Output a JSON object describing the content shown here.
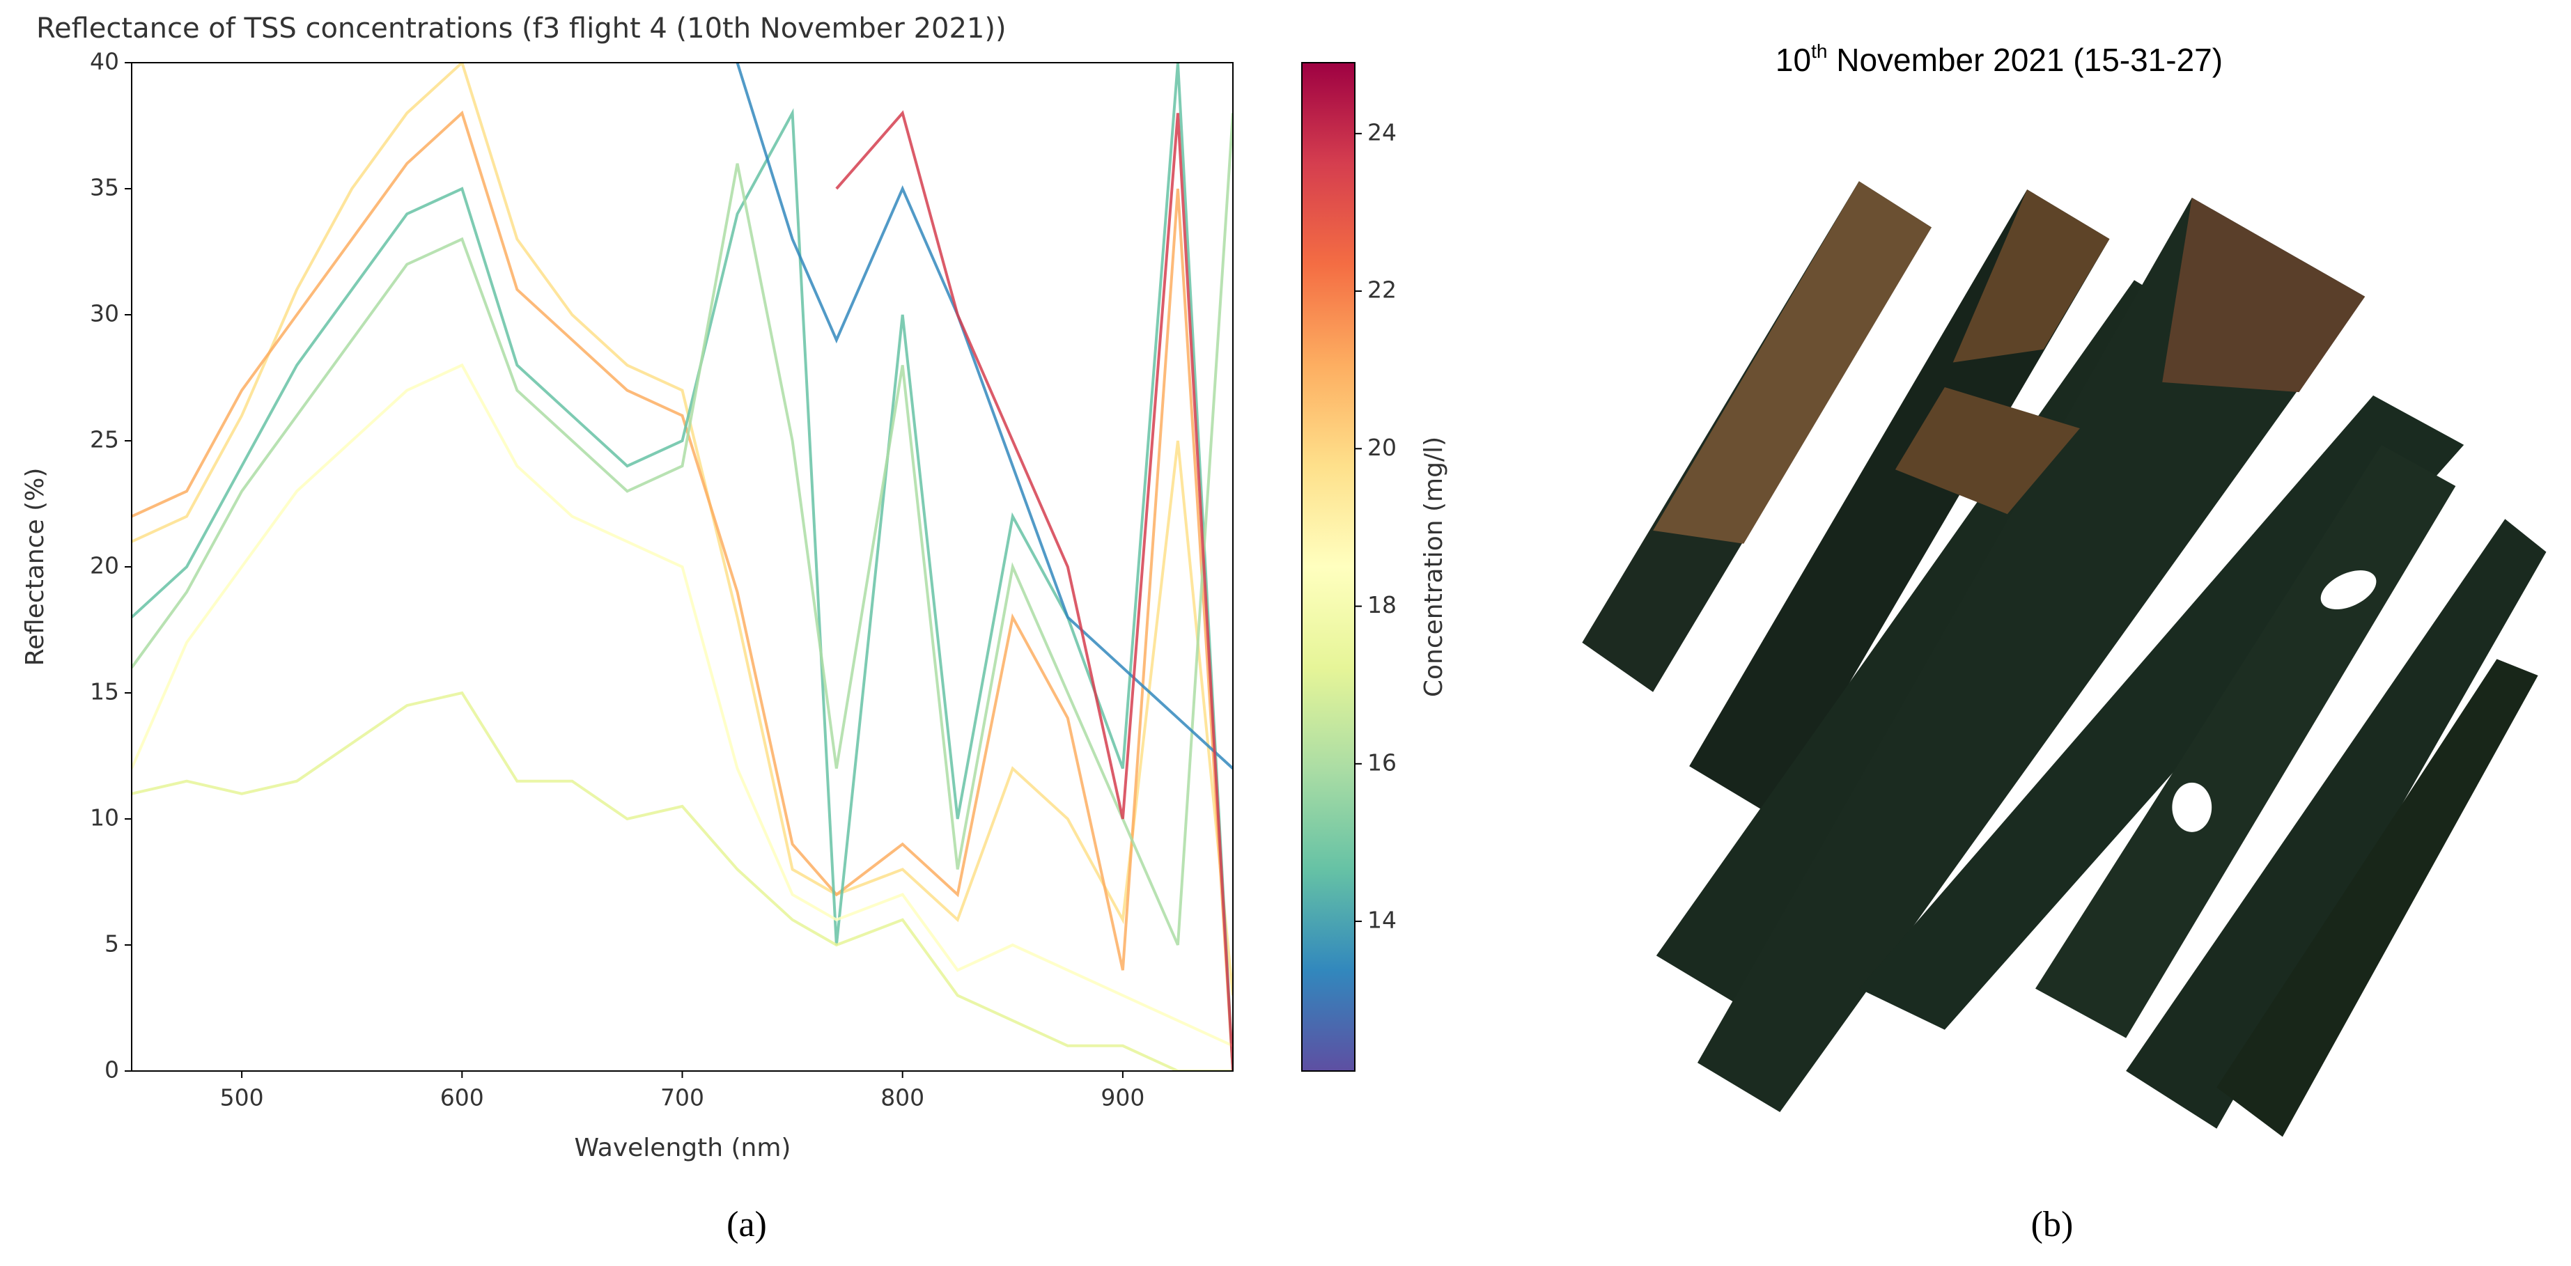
{
  "chart_data": {
    "type": "line",
    "title": "Reflectance of TSS concentrations (f3 flight 4 (10th November 2021))",
    "x_label": "Wavelength (nm)",
    "y_label": "Reflectance (%)",
    "colorbar_label": "Concentration (mg/l)",
    "x": [
      450,
      475,
      500,
      525,
      550,
      575,
      600,
      625,
      650,
      675,
      700,
      725,
      750,
      770,
      800,
      825,
      850,
      875,
      900,
      925,
      950
    ],
    "series": [
      {
        "color": "#fee08b",
        "values": [
          21,
          22,
          26,
          31,
          35,
          38,
          40,
          33,
          30,
          28,
          27,
          18,
          8,
          7,
          8,
          6,
          12,
          10,
          6,
          25,
          3
        ]
      },
      {
        "color": "#fdae61",
        "values": [
          22,
          23,
          27,
          30,
          33,
          36,
          38,
          31,
          29,
          27,
          26,
          19,
          9,
          7,
          9,
          7,
          18,
          14,
          4,
          35,
          0
        ]
      },
      {
        "color": "#66c2a5",
        "values": [
          18,
          20,
          24,
          28,
          31,
          34,
          35,
          28,
          26,
          24,
          25,
          34,
          38,
          5,
          30,
          10,
          22,
          18,
          12,
          40,
          0
        ]
      },
      {
        "color": "#abdda4",
        "values": [
          16,
          19,
          23,
          26,
          29,
          32,
          33,
          27,
          25,
          23,
          24,
          36,
          25,
          12,
          28,
          8,
          20,
          15,
          10,
          5,
          38
        ]
      },
      {
        "color": "#ffffbf",
        "values": [
          12,
          17,
          20,
          23,
          25,
          27,
          28,
          24,
          22,
          21,
          20,
          12,
          7,
          6,
          7,
          4,
          5,
          4,
          3,
          2,
          1
        ]
      },
      {
        "color": "#e6f598",
        "values": [
          11,
          11.5,
          11,
          11.5,
          13,
          14.5,
          15,
          11.5,
          11.5,
          10,
          10.5,
          8,
          6,
          5,
          6,
          3,
          2,
          1,
          1,
          0,
          0
        ]
      },
      {
        "color": "#3288bd",
        "values": [
          null,
          null,
          null,
          null,
          null,
          null,
          null,
          null,
          null,
          null,
          null,
          40,
          33,
          29,
          35,
          30,
          24,
          18,
          16,
          14,
          12
        ]
      },
      {
        "color": "#d53e4f",
        "values": [
          null,
          null,
          null,
          null,
          null,
          null,
          null,
          null,
          null,
          null,
          null,
          null,
          null,
          35,
          38,
          30,
          25,
          20,
          10,
          38,
          0
        ]
      }
    ],
    "xlim": [
      450,
      950
    ],
    "ylim": [
      0,
      40
    ],
    "xticks": [
      500,
      600,
      700,
      800,
      900
    ],
    "yticks": [
      0,
      5,
      10,
      15,
      20,
      25,
      30,
      35,
      40
    ],
    "clim": [
      12.1,
      24.9
    ],
    "cticks": [
      14,
      16,
      18,
      20,
      22,
      24
    ],
    "colormap": [
      "#5e4fa2",
      "#3288bd",
      "#66c2a5",
      "#abdda4",
      "#e6f598",
      "#ffffbf",
      "#fee08b",
      "#fdae61",
      "#f46d43",
      "#d53e4f",
      "#9e0142"
    ],
    "panel_label": "(a)"
  },
  "panel_b": {
    "title_day": "10",
    "title_suffix": "th",
    "title_rest": " November 2021 (15-31-27)",
    "panel_label": "(b)"
  }
}
